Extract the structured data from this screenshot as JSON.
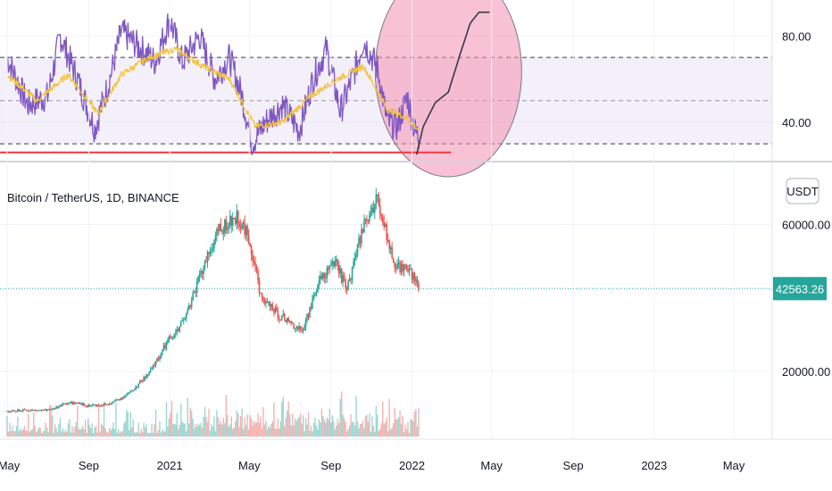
{
  "chart_data": [
    {
      "type": "line",
      "panel": "rsi",
      "y_ticks": [
        "80.00",
        "40.00"
      ],
      "y_tick_values": [
        80,
        40
      ],
      "ylim": [
        23,
        95
      ],
      "levels": {
        "upper": 70,
        "middle": 50,
        "lower": 30
      },
      "support_line": 26,
      "series": [
        {
          "color": "#7e57c2",
          "x": [
            "2020-05-01",
            "2020-06-01",
            "2020-07-01",
            "2020-07-20",
            "2020-08-15",
            "2020-09-10",
            "2020-10-01",
            "2020-10-20",
            "2020-11-15",
            "2020-12-10",
            "2021-01-01",
            "2021-01-20",
            "2021-02-15",
            "2021-03-10",
            "2021-04-01",
            "2021-04-20",
            "2021-05-05",
            "2021-05-25",
            "2021-06-20",
            "2021-07-15",
            "2021-08-05",
            "2021-08-25",
            "2021-09-15",
            "2021-10-05",
            "2021-10-20",
            "2021-11-10",
            "2021-11-25",
            "2021-12-10",
            "2021-12-25",
            "2022-01-05",
            "2022-01-12"
          ],
          "values": [
            70,
            48,
            52,
            80,
            60,
            37,
            58,
            82,
            75,
            68,
            88,
            68,
            80,
            60,
            70,
            52,
            30,
            40,
            48,
            36,
            60,
            74,
            45,
            62,
            78,
            65,
            40,
            38,
            52,
            36,
            33
          ]
        },
        {
          "color": "#f5c242",
          "x": [
            "2020-05-01",
            "2020-06-15",
            "2020-08-01",
            "2020-09-15",
            "2020-10-20",
            "2020-12-01",
            "2021-01-10",
            "2021-02-20",
            "2021-04-01",
            "2021-05-10",
            "2021-06-20",
            "2021-08-01",
            "2021-09-10",
            "2021-10-20",
            "2021-11-25",
            "2021-12-25",
            "2022-01-12"
          ],
          "values": [
            62,
            50,
            62,
            44,
            62,
            70,
            74,
            66,
            60,
            38,
            40,
            52,
            60,
            66,
            46,
            42,
            36
          ]
        },
        {
          "color": "#363a45",
          "x": [
            "2022-01-08",
            "2022-01-18",
            "2022-02-05",
            "2022-02-25",
            "2022-03-15",
            "2022-03-30",
            "2022-04-12",
            "2022-04-28"
          ],
          "values": [
            25,
            38,
            49,
            54,
            72,
            86,
            91,
            91
          ]
        }
      ]
    },
    {
      "type": "candlestick",
      "panel": "price",
      "legend": "Bitcoin / TetherUS, 1D, BINANCE",
      "currency_label": "USDT",
      "y_ticks": [
        "60000.00",
        "20000.00"
      ],
      "y_tick_values": [
        60000,
        20000
      ],
      "ylim": [
        2000,
        75000
      ],
      "last_price": "42563.26",
      "last_price_value": 42563.26,
      "x_labels": [
        "May",
        "Sep",
        "2021",
        "May",
        "Sep",
        "2022",
        "May",
        "Sep",
        "2023",
        "May"
      ],
      "x_label_dates": [
        "2020-05-01",
        "2020-09-01",
        "2021-01-01",
        "2021-05-01",
        "2021-09-01",
        "2022-01-01",
        "2022-05-01",
        "2022-09-01",
        "2023-01-01",
        "2023-05-01"
      ],
      "colors": {
        "up": "#26a69a",
        "down": "#ef5350"
      },
      "price_path": {
        "x": [
          "2020-05-01",
          "2020-06-01",
          "2020-07-01",
          "2020-08-01",
          "2020-09-01",
          "2020-10-01",
          "2020-11-01",
          "2020-12-01",
          "2021-01-01",
          "2021-01-20",
          "2021-02-20",
          "2021-03-15",
          "2021-04-14",
          "2021-05-01",
          "2021-05-19",
          "2021-06-10",
          "2021-07-20",
          "2021-08-15",
          "2021-09-07",
          "2021-09-25",
          "2021-10-20",
          "2021-11-10",
          "2021-11-25",
          "2021-12-05",
          "2021-12-20",
          "2022-01-05",
          "2022-01-12"
        ],
        "values": [
          9000,
          9500,
          9300,
          11500,
          10700,
          11000,
          14000,
          19500,
          29000,
          33000,
          48000,
          58000,
          62000,
          56000,
          40000,
          36000,
          31000,
          45000,
          50000,
          42000,
          60000,
          67000,
          57000,
          49000,
          48000,
          46000,
          42563
        ]
      }
    }
  ]
}
